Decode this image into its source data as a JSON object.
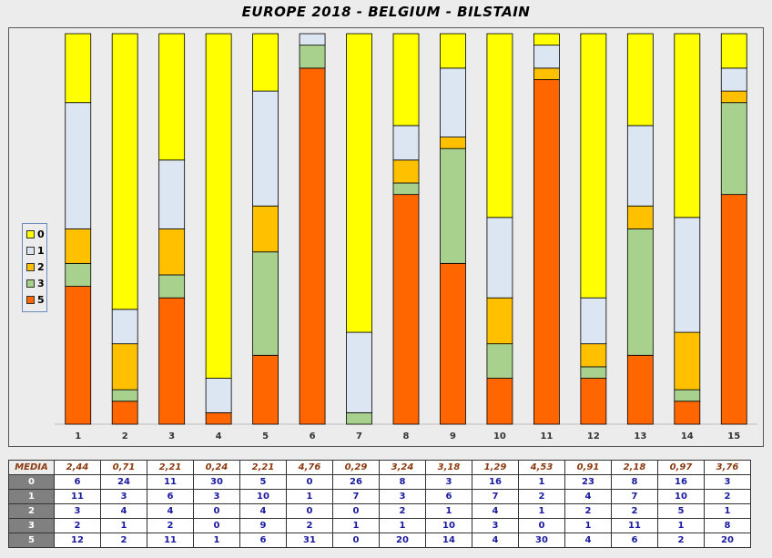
{
  "title": "EUROPE 2018 - BELGIUM - BILSTAIN",
  "chart_data": {
    "type": "bar",
    "stacked": true,
    "normalized": true,
    "categories": [
      "1",
      "2",
      "3",
      "4",
      "5",
      "6",
      "7",
      "8",
      "9",
      "10",
      "11",
      "12",
      "13",
      "14",
      "15"
    ],
    "series": [
      {
        "name": "5",
        "color": "#ff6600",
        "values": [
          12,
          2,
          11,
          1,
          6,
          31,
          0,
          20,
          14,
          4,
          30,
          4,
          6,
          2,
          20
        ]
      },
      {
        "name": "3",
        "color": "#a9d18e",
        "values": [
          2,
          1,
          2,
          0,
          9,
          2,
          1,
          1,
          10,
          3,
          0,
          1,
          11,
          1,
          8
        ]
      },
      {
        "name": "2",
        "color": "#ffc000",
        "values": [
          3,
          4,
          4,
          0,
          4,
          0,
          0,
          2,
          1,
          4,
          1,
          2,
          2,
          5,
          1
        ]
      },
      {
        "name": "1",
        "color": "#dce6f2",
        "values": [
          11,
          3,
          6,
          3,
          10,
          1,
          7,
          3,
          6,
          7,
          2,
          4,
          7,
          10,
          2
        ]
      },
      {
        "name": "0",
        "color": "#ffff00",
        "values": [
          6,
          24,
          11,
          30,
          5,
          0,
          26,
          8,
          3,
          16,
          1,
          23,
          8,
          16,
          3
        ]
      }
    ],
    "legend": {
      "position": "left",
      "order": [
        "0",
        "1",
        "2",
        "3",
        "5"
      ]
    },
    "grid": false
  },
  "table": {
    "media_label": "MEDIA",
    "media": [
      "2,44",
      "0,71",
      "2,21",
      "0,24",
      "2,21",
      "4,76",
      "0,29",
      "3,24",
      "3,18",
      "1,29",
      "4,53",
      "0,91",
      "2,18",
      "0,97",
      "3,76"
    ],
    "rows": [
      {
        "label": "0",
        "values": [
          "6",
          "24",
          "11",
          "30",
          "5",
          "0",
          "26",
          "8",
          "3",
          "16",
          "1",
          "23",
          "8",
          "16",
          "3"
        ]
      },
      {
        "label": "1",
        "values": [
          "11",
          "3",
          "6",
          "3",
          "10",
          "1",
          "7",
          "3",
          "6",
          "7",
          "2",
          "4",
          "7",
          "10",
          "2"
        ]
      },
      {
        "label": "2",
        "values": [
          "3",
          "4",
          "4",
          "0",
          "4",
          "0",
          "0",
          "2",
          "1",
          "4",
          "1",
          "2",
          "2",
          "5",
          "1"
        ]
      },
      {
        "label": "3",
        "values": [
          "2",
          "1",
          "2",
          "0",
          "9",
          "2",
          "1",
          "1",
          "10",
          "3",
          "0",
          "1",
          "11",
          "1",
          "8"
        ]
      },
      {
        "label": "5",
        "values": [
          "12",
          "2",
          "11",
          "1",
          "6",
          "31",
          "0",
          "20",
          "14",
          "4",
          "30",
          "4",
          "6",
          "2",
          "20"
        ]
      }
    ]
  }
}
